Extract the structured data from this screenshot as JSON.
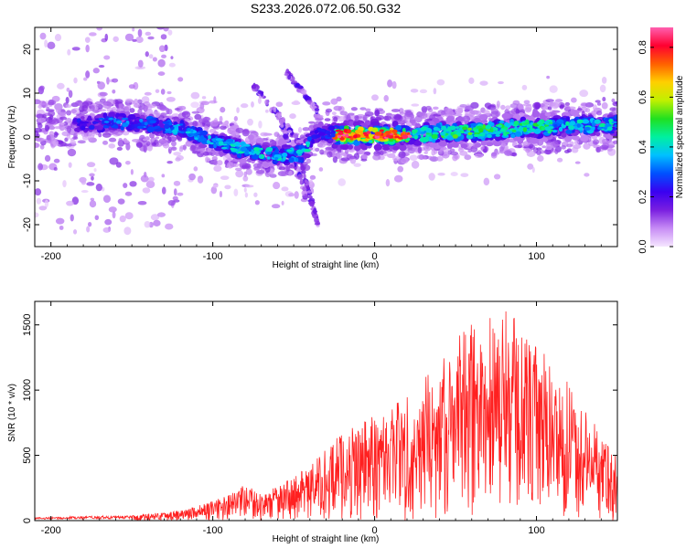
{
  "title": "S233.2026.072.06.50.G32",
  "chart_data": [
    {
      "type": "heatmap",
      "name": "spectrogram",
      "xlabel": "Height of straight line (km)",
      "ylabel": "Frequency (Hz)",
      "xlim": [
        -210,
        150
      ],
      "ylim": [
        -25,
        25
      ],
      "xticks": [
        -200,
        -100,
        0,
        100
      ],
      "yticks": [
        -20,
        -10,
        0,
        10,
        20
      ],
      "colorbar": {
        "label": "Normalized spectral amplitude",
        "range": [
          0.0,
          0.88
        ],
        "ticks": [
          0.0,
          0.2,
          0.4,
          0.6,
          0.8
        ],
        "colormap": [
          "#f6e6ff",
          "#c78cf5",
          "#7a1fe0",
          "#3a00f0",
          "#0050ff",
          "#00c0ff",
          "#00f0a0",
          "#20e020",
          "#c0f000",
          "#ffd000",
          "#ff6000",
          "#ff0030",
          "#ff60b0"
        ]
      },
      "ridge": {
        "description": "main signal ridge (frequency in Hz vs height in km)",
        "x": [
          -180,
          -160,
          -140,
          -120,
          -100,
          -80,
          -60,
          -45,
          -35,
          -20,
          0,
          20,
          40,
          60,
          80,
          100,
          120,
          150
        ],
        "y": [
          3,
          3.5,
          3,
          2,
          -1,
          -3,
          -4,
          -4,
          1,
          0.5,
          0.5,
          0.3,
          1,
          1.2,
          1.8,
          2.2,
          2.5,
          2.8
        ]
      }
    },
    {
      "type": "line",
      "name": "snr",
      "color": "#ff2020",
      "xlabel": "Height of straight line (km)",
      "ylabel": "SNR (10 * v/v)",
      "xlim": [
        -210,
        150
      ],
      "ylim": [
        0,
        1680
      ],
      "xticks": [
        -200,
        -100,
        0,
        100
      ],
      "yticks": [
        0,
        500,
        1000,
        1500
      ],
      "envelope": {
        "description": "approximate upper envelope of SNR trace",
        "x": [
          -210,
          -150,
          -120,
          -100,
          -85,
          -80,
          -70,
          -55,
          -40,
          -20,
          0,
          20,
          40,
          60,
          80,
          100,
          120,
          150
        ],
        "y": [
          25,
          40,
          80,
          150,
          230,
          280,
          200,
          300,
          420,
          680,
          820,
          980,
          1200,
          1550,
          1650,
          1350,
          1050,
          480
        ]
      }
    }
  ]
}
